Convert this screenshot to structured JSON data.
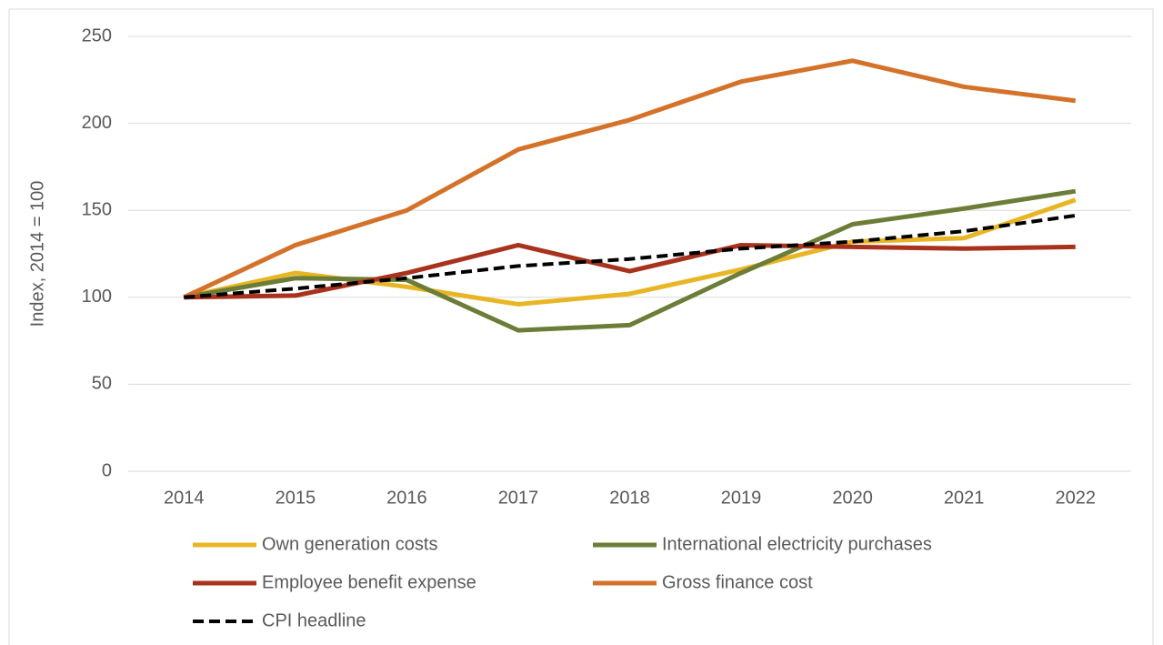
{
  "chart_data": {
    "type": "line",
    "ylabel": "Index, 2014 = 100",
    "categories": [
      "2014",
      "2015",
      "2016",
      "2017",
      "2018",
      "2019",
      "2020",
      "2021",
      "2022"
    ],
    "ylim": [
      0,
      250
    ],
    "yticks": [
      0,
      50,
      100,
      150,
      200,
      250
    ],
    "grid": true,
    "series": [
      {
        "name": "Own generation costs",
        "color": "#e8b524",
        "values": [
          100,
          114,
          106,
          96,
          102,
          116,
          132,
          134,
          156
        ]
      },
      {
        "name": "International electricity purchases",
        "color": "#6b7d36",
        "values": [
          100,
          111,
          110,
          81,
          84,
          114,
          142,
          151,
          161
        ]
      },
      {
        "name": "Employee benefit expense",
        "color": "#a8321c",
        "values": [
          100,
          101,
          114,
          130,
          115,
          130,
          129,
          128,
          129
        ]
      },
      {
        "name": "Gross finance cost",
        "color": "#d4722a",
        "values": [
          100,
          130,
          150,
          185,
          202,
          224,
          236,
          221,
          213
        ]
      },
      {
        "name": "CPI headline",
        "color": "#000000",
        "dashed": true,
        "values": [
          100,
          105,
          111,
          118,
          122,
          128,
          132,
          138,
          147
        ]
      }
    ]
  }
}
